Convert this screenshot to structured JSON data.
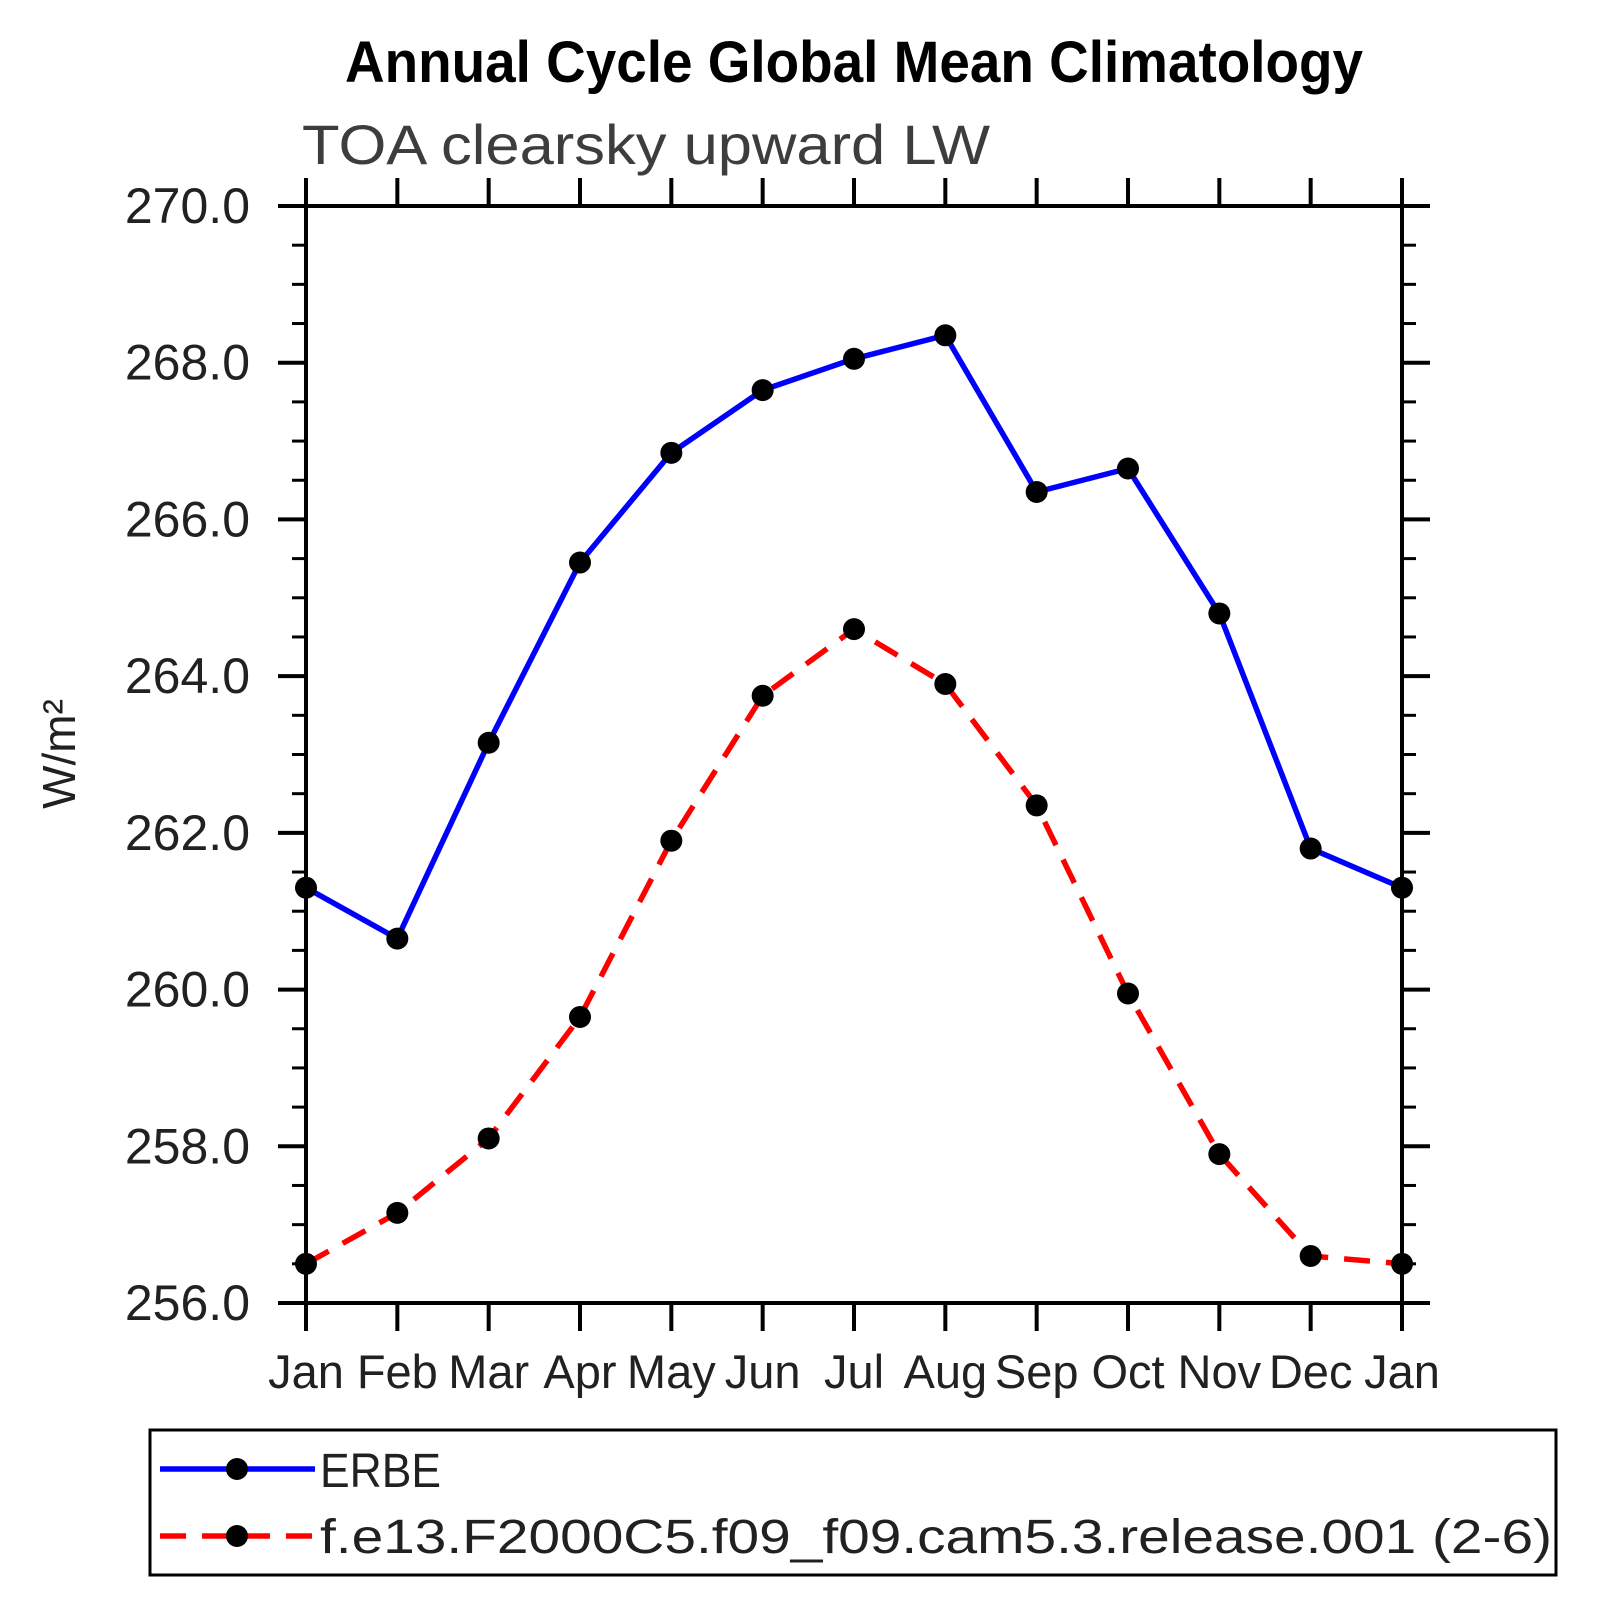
{
  "header": {
    "title": "Annual Cycle Global Mean Climatology",
    "subtitle": "TOA clearsky upward LW"
  },
  "y_axis": {
    "label": "W/m²"
  },
  "chart_data": {
    "type": "line",
    "title": "Annual Cycle Global Mean Climatology",
    "subtitle": "TOA clearsky upward LW",
    "xlabel": "",
    "ylabel": "W/m²",
    "categories": [
      "Jan",
      "Feb",
      "Mar",
      "Apr",
      "May",
      "Jun",
      "Jul",
      "Aug",
      "Sep",
      "Oct",
      "Nov",
      "Dec",
      "Jan"
    ],
    "ylim": [
      256.0,
      270.0
    ],
    "y_major_step": 2.0,
    "y_minor_step": 0.5,
    "y_tick_labels": [
      "256.0",
      "258.0",
      "260.0",
      "262.0",
      "264.0",
      "266.0",
      "268.0",
      "270.0"
    ],
    "grid": false,
    "legend_position": "bottom-left-box",
    "axis_color": "#000000",
    "marker": {
      "shape": "circle",
      "color": "#000000"
    },
    "series": [
      {
        "name": "ERBE",
        "color": "#0000ff",
        "line_style": "solid",
        "values": [
          261.3,
          260.65,
          263.15,
          265.45,
          266.85,
          267.65,
          268.05,
          268.35,
          266.35,
          266.65,
          264.8,
          261.8,
          261.3
        ]
      },
      {
        "name": "f.e13.F2000C5.f09_f09.cam5.3.release.001 (2-6)",
        "color": "#ff0000",
        "line_style": "dashed",
        "values": [
          256.5,
          257.15,
          258.1,
          259.65,
          261.9,
          263.75,
          264.6,
          263.9,
          262.35,
          259.95,
          257.9,
          256.6,
          256.5
        ]
      }
    ]
  }
}
